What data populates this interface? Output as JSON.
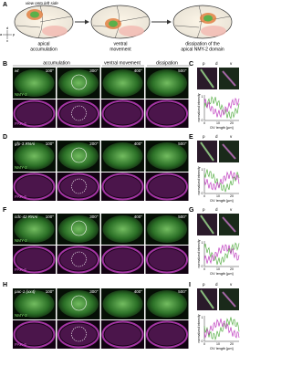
{
  "panel_a": {
    "label": "A",
    "view_note": "view onto left side",
    "axes": [
      "a",
      "p",
      "d",
      "v"
    ],
    "steps": [
      [
        "apical",
        "accumulation"
      ],
      [
        "ventral",
        "movement"
      ],
      [
        "dissipation of the",
        "apical NMY-2 domain"
      ]
    ]
  },
  "panels": [
    {
      "label": "B",
      "condition": "wt",
      "headers": [
        "accumulation",
        "ventral movement",
        "dissipation"
      ],
      "times": [
        "100''",
        "300''",
        "400''",
        "500''"
      ],
      "channels": [
        "NMY-2",
        "PAR-6"
      ],
      "side_label": "C",
      "side_axes": [
        "p",
        "d",
        "v"
      ],
      "y_label": "normalized intensity",
      "x_label": "DV length [µm]",
      "x_ticks": [
        "0",
        "10",
        "20"
      ],
      "y_ticks": [
        "1",
        "0"
      ]
    },
    {
      "label": "D",
      "condition": "gfp-3 RNAi",
      "times": [
        "100''",
        "200''",
        "400''",
        "500''"
      ],
      "channels": [
        "NMY-2",
        "PAR-6"
      ],
      "side_label": "E",
      "side_axes": [
        "p",
        "d",
        "v"
      ],
      "y_label": "normalized intensity",
      "x_label": "DV length [µm]",
      "x_ticks": [
        "0",
        "10",
        "20"
      ],
      "y_ticks": [
        "1",
        "0"
      ]
    },
    {
      "label": "F",
      "condition": "cdc-42 RNAi",
      "times": [
        "100''",
        "300''",
        "400''",
        "500''"
      ],
      "channels": [
        "NMY-2",
        "PAR-6"
      ],
      "side_label": "G",
      "side_axes": [
        "p",
        "d",
        "v"
      ],
      "y_label": "normalized intensity",
      "x_label": "DV length [µm]",
      "x_ticks": [
        "0",
        "10",
        "20"
      ],
      "y_ticks": [
        "1",
        "0"
      ]
    },
    {
      "label": "H",
      "condition": "pac-1 (xx4)",
      "times": [
        "100''",
        "300''",
        "400''",
        "500''"
      ],
      "channels": [
        "NMY-2",
        "PAR-6"
      ],
      "side_label": "I",
      "side_axes": [
        "p",
        "d",
        "v"
      ],
      "y_label": "normalized intensity",
      "x_label": "DV length [µm]",
      "x_ticks": [
        "0",
        "10",
        "20"
      ],
      "y_ticks": [
        "1",
        "0"
      ]
    }
  ]
}
